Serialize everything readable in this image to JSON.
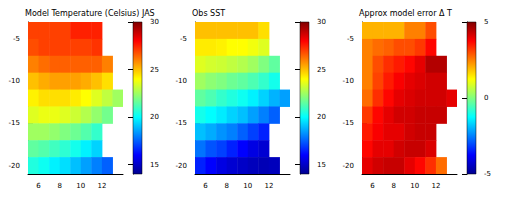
{
  "chart_data": [
    {
      "type": "heatmap",
      "title": "Model Temperature (Celsius) JAS",
      "x": [
        5.5,
        6.5,
        7.5,
        8.5,
        9.5,
        10.5,
        11.5,
        12.5,
        13.5
      ],
      "y": [
        -4,
        -6,
        -8,
        -10,
        -12,
        -14,
        -16,
        -18,
        -20
      ],
      "values": [
        [
          27,
          27,
          27,
          27,
          27.5,
          27.5,
          27.5,
          null,
          null
        ],
        [
          26.8,
          27,
          27,
          27,
          27,
          27,
          27.2,
          null,
          null
        ],
        [
          26,
          26.3,
          26.5,
          26.5,
          26.5,
          26.5,
          26.5,
          26,
          null
        ],
        [
          25,
          25.3,
          25.5,
          25.5,
          25.5,
          25.3,
          25,
          24.5,
          null
        ],
        [
          24.2,
          24.5,
          24.5,
          24.5,
          24.3,
          24,
          23.5,
          23,
          22.5
        ],
        [
          23.5,
          23.7,
          23.7,
          23.5,
          23.2,
          22.8,
          22.3,
          21.8,
          null
        ],
        [
          22.5,
          22.5,
          22.3,
          22,
          21.7,
          21.3,
          20.8,
          null,
          null
        ],
        [
          21.5,
          21.3,
          21,
          20.7,
          20.3,
          19.8,
          19.3,
          null,
          null
        ],
        [
          20.5,
          20.2,
          19.8,
          19.5,
          19,
          18.5,
          18,
          17.5,
          null
        ]
      ],
      "xlim": [
        5,
        14
      ],
      "xticks": [
        6,
        8,
        10,
        12
      ],
      "ylim": [
        -21,
        -3
      ],
      "yticks": [
        -5,
        -10,
        -15,
        -20
      ],
      "colorbar": {
        "range": [
          14,
          30
        ],
        "ticks": [
          15,
          20,
          25,
          30
        ]
      }
    },
    {
      "type": "heatmap",
      "title": "Obs SST",
      "x": [
        5.5,
        6.5,
        7.5,
        8.5,
        9.5,
        10.5,
        11.5,
        12.5,
        13.5
      ],
      "y": [
        -4,
        -6,
        -8,
        -10,
        -12,
        -14,
        -16,
        -18,
        -20
      ],
      "values": [
        [
          25,
          25,
          25,
          25,
          25,
          25,
          24.5,
          null,
          null
        ],
        [
          24.3,
          24.3,
          24.2,
          24,
          24,
          23.8,
          23.5,
          null,
          null
        ],
        [
          23.5,
          23.3,
          23.2,
          23,
          22.8,
          22.5,
          22,
          21.5,
          null
        ],
        [
          22.5,
          22.2,
          22,
          21.7,
          21.5,
          21.2,
          20.8,
          20.3,
          null
        ],
        [
          21.5,
          21.2,
          20.8,
          20.5,
          20.2,
          19.8,
          19.3,
          18.8,
          18.5
        ],
        [
          20.3,
          20,
          19.7,
          19.3,
          19,
          18.5,
          18,
          17.5,
          null
        ],
        [
          19,
          18.7,
          18.3,
          18,
          17.5,
          17,
          16.5,
          null,
          null
        ],
        [
          17.8,
          17.3,
          17,
          16.5,
          16,
          15.5,
          15.2,
          null,
          null
        ],
        [
          16.5,
          16,
          15.5,
          15.2,
          15,
          14.8,
          14.7,
          14.8,
          null
        ]
      ],
      "xlim": [
        5,
        14
      ],
      "xticks": [
        6,
        8,
        10,
        12
      ],
      "ylim": [
        -21,
        -3
      ],
      "yticks": [
        -5,
        -10,
        -15,
        -20
      ],
      "colorbar": {
        "range": [
          14,
          30
        ],
        "ticks": [
          15,
          20,
          25,
          30
        ]
      }
    },
    {
      "type": "heatmap",
      "title": "Approx model error Δ T",
      "x": [
        5.5,
        6.5,
        7.5,
        8.5,
        9.5,
        10.5,
        11.5,
        12.5,
        13.5
      ],
      "y": [
        -4,
        -6,
        -8,
        -10,
        -12,
        -14,
        -16,
        -18,
        -20
      ],
      "values": [
        [
          2,
          2,
          2,
          2,
          2.5,
          2.5,
          3,
          null,
          null
        ],
        [
          2.5,
          2.7,
          2.8,
          3,
          3,
          3.2,
          3.7,
          null,
          null
        ],
        [
          2.5,
          3,
          3.3,
          3.5,
          3.7,
          4,
          4.5,
          4.5,
          null
        ],
        [
          2.5,
          3.1,
          3.5,
          3.8,
          4,
          4.1,
          4.2,
          4.2,
          null
        ],
        [
          2.7,
          3.3,
          3.7,
          4,
          4.1,
          4.2,
          4.2,
          4.2,
          4
        ],
        [
          3.2,
          3.7,
          4,
          4.2,
          4.2,
          4.3,
          4.3,
          4.3,
          null
        ],
        [
          3.5,
          3.8,
          4,
          4,
          4.2,
          4.3,
          4.3,
          null,
          null
        ],
        [
          3.7,
          4,
          4,
          4.2,
          4.3,
          4.3,
          4.1,
          null,
          null
        ],
        [
          4,
          4.2,
          4.3,
          4.3,
          4,
          3.7,
          3.3,
          2.7,
          null
        ]
      ],
      "xlim": [
        5,
        14
      ],
      "xticks": [
        6,
        8,
        10,
        12
      ],
      "ylim": [
        -21,
        -3
      ],
      "yticks": [
        -5,
        -10,
        -15,
        -20
      ],
      "colorbar": {
        "range": [
          -5,
          5
        ],
        "ticks": [
          -5,
          0,
          5
        ]
      }
    }
  ]
}
